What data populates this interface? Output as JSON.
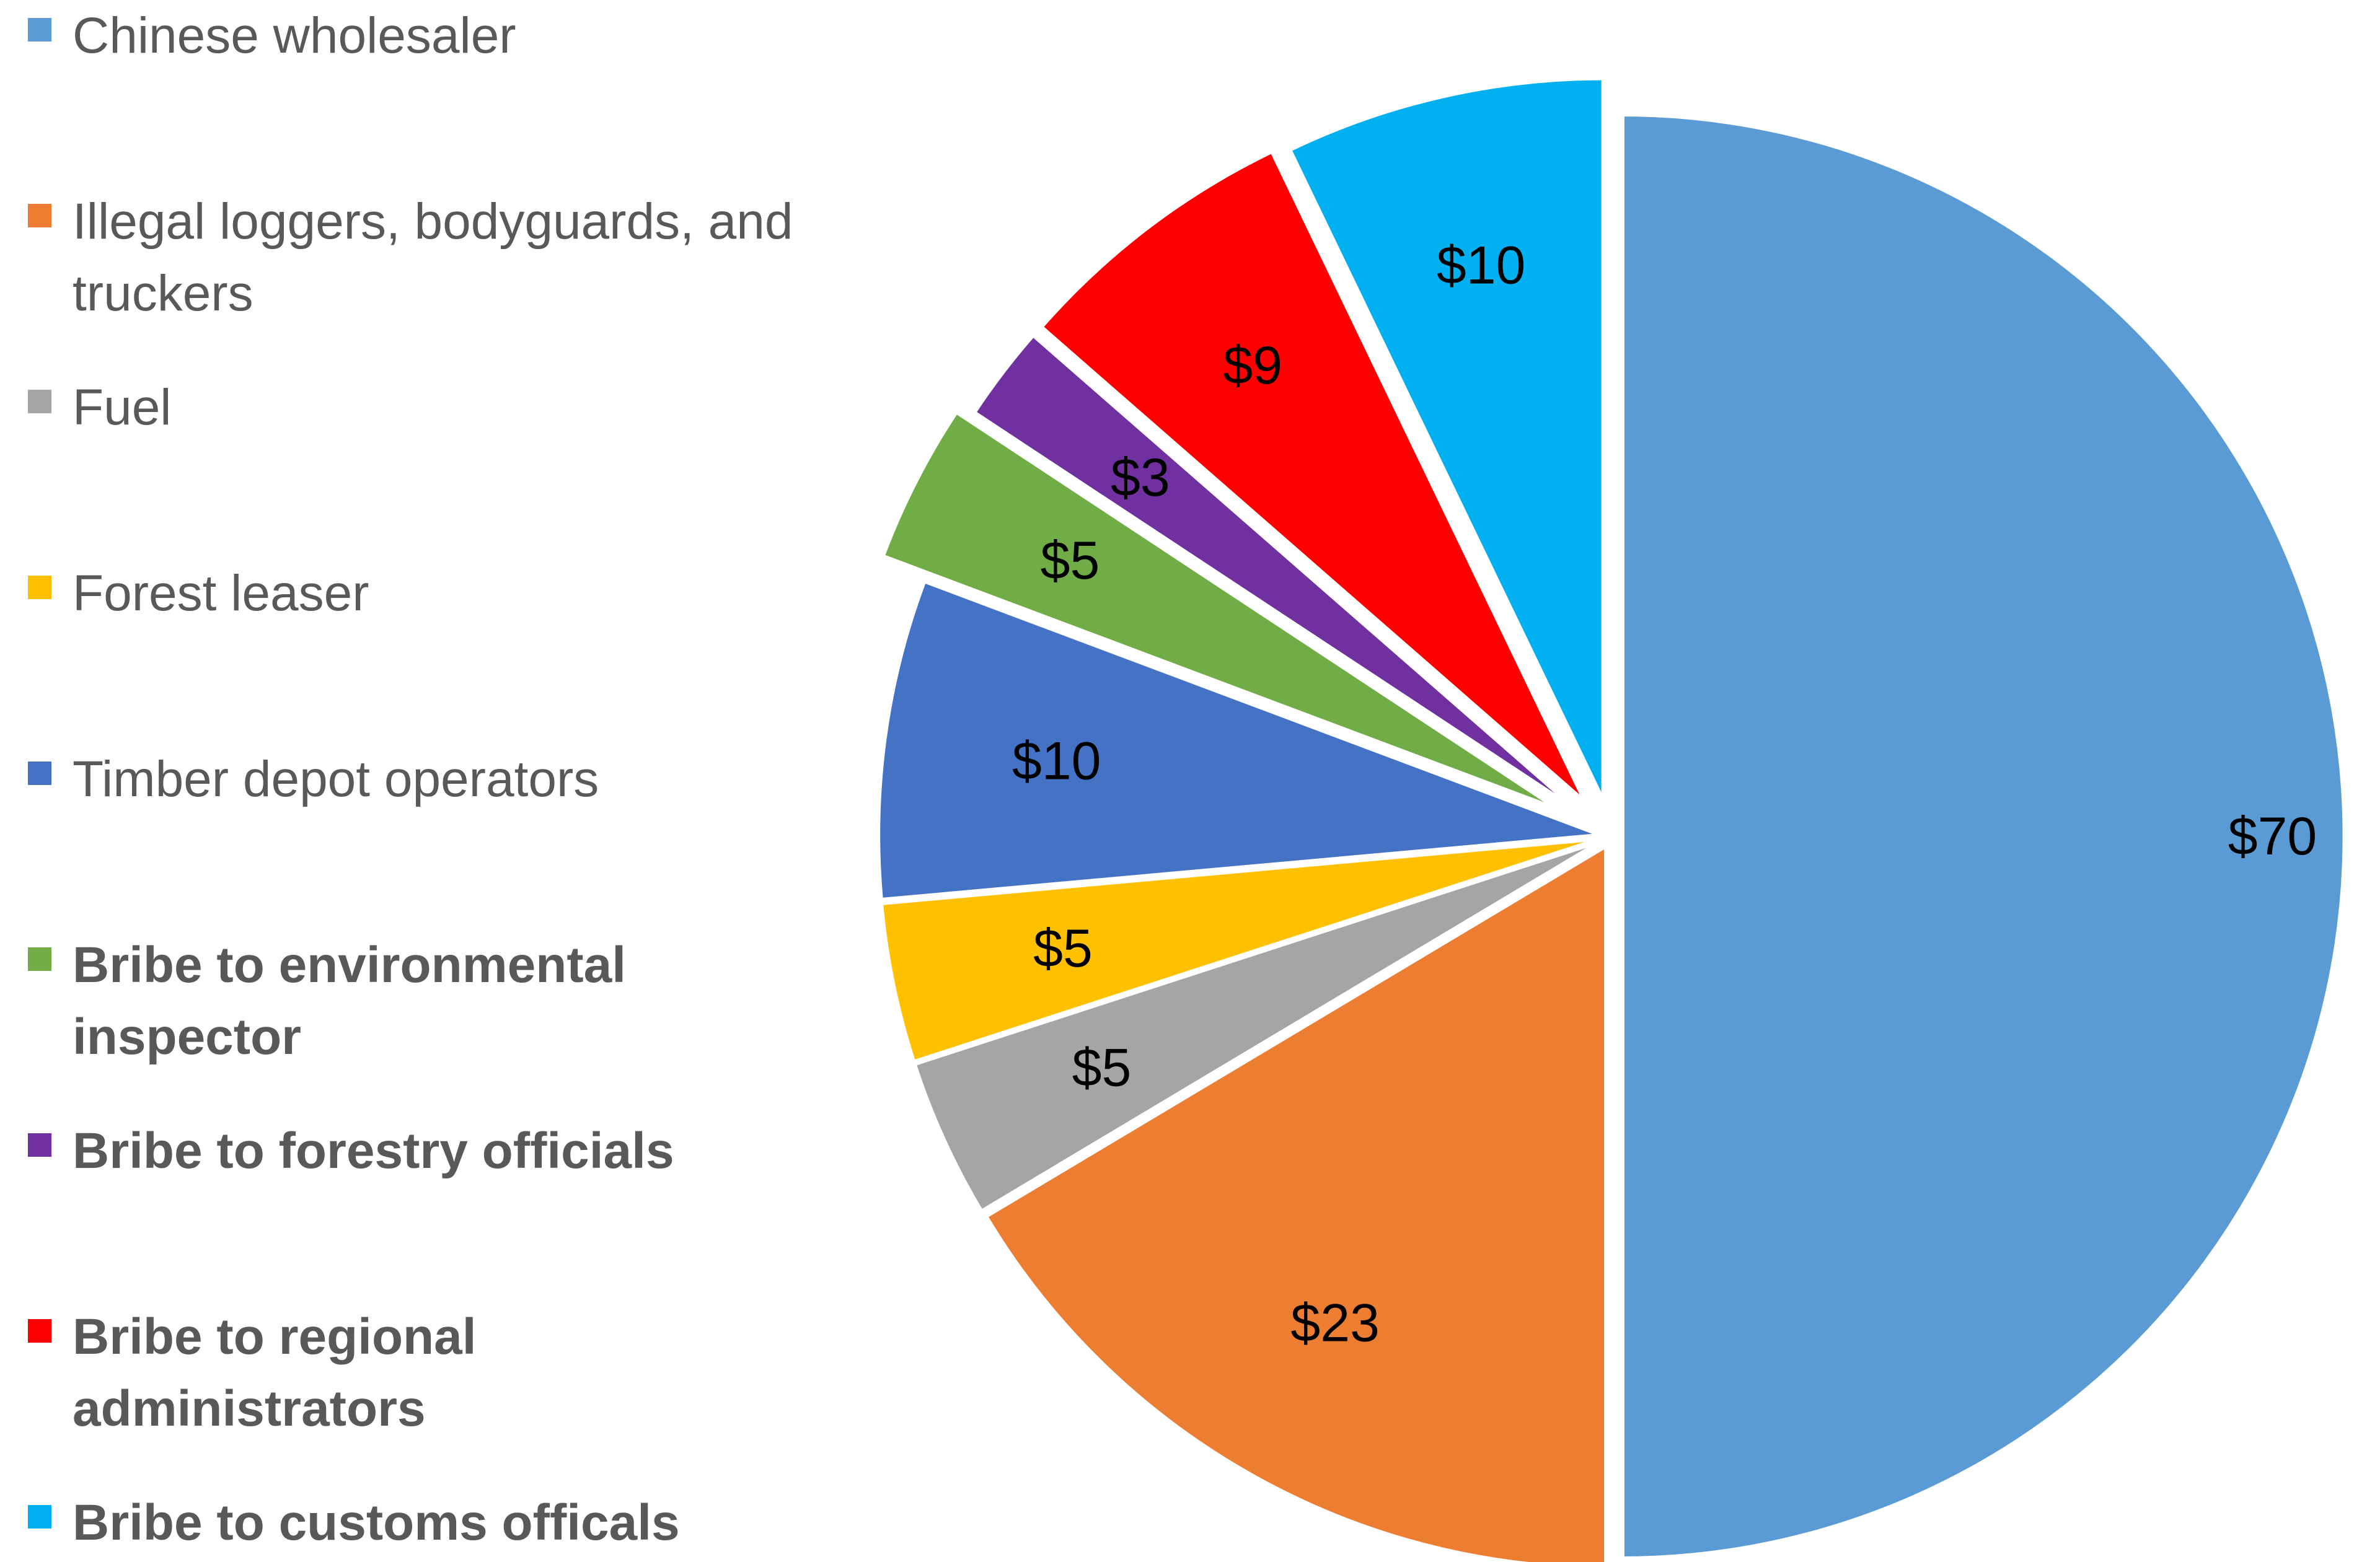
{
  "chart_data": {
    "type": "pie",
    "title": "",
    "legend_position": "left",
    "slices": [
      {
        "label": "Chinese wholesaler",
        "value": 70,
        "display": "$70",
        "color": "#5B9BD5",
        "emphasis": false
      },
      {
        "label": "Illegal loggers, bodyguards, and truckers",
        "value": 23,
        "display": "$23",
        "color": "#ED7D31",
        "emphasis": false
      },
      {
        "label": "Fuel",
        "value": 5,
        "display": "$5",
        "color": "#A5A5A5",
        "emphasis": false
      },
      {
        "label": "Forest leaser",
        "value": 5,
        "display": "$5",
        "color": "#FFC000",
        "emphasis": false
      },
      {
        "label": "Timber depot operators",
        "value": 10,
        "display": "$10",
        "color": "#4472C4",
        "emphasis": false
      },
      {
        "label": "Bribe to environmental inspector",
        "value": 5,
        "display": "$5",
        "color": "#70AD47",
        "emphasis": true
      },
      {
        "label": "Bribe to forestry officials",
        "value": 3,
        "display": "$3",
        "color": "#7030A0",
        "emphasis": true
      },
      {
        "label": "Bribe to regional administrators",
        "value": 9,
        "display": "$9",
        "color": "#FF0000",
        "emphasis": true
      },
      {
        "label": "Bribe to customs officals",
        "value": 10,
        "display": "$10",
        "color": "#00B0F0",
        "emphasis": true
      }
    ]
  }
}
